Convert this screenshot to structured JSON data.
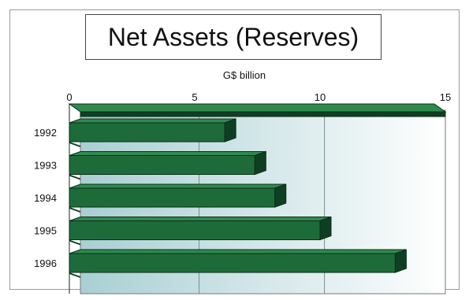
{
  "chart_data": {
    "type": "bar",
    "orientation": "horizontal",
    "title": "Net Assets (Reserves)",
    "xlabel": "G$ billion",
    "ylabel": "",
    "categories": [
      "1992",
      "1993",
      "1994",
      "1995",
      "1996"
    ],
    "values": [
      6.2,
      7.4,
      8.2,
      10.0,
      13.0
    ],
    "xlim": [
      0,
      15
    ],
    "xticks": [
      0,
      5,
      10,
      15
    ],
    "grid": true,
    "legend": "none",
    "bar_color": "#1e6b3a",
    "bar_top_color": "#2f8a4e",
    "bar_side_color": "#0f3f22",
    "wall_gradient": [
      "#a9cfd3",
      "#ffffff"
    ]
  }
}
